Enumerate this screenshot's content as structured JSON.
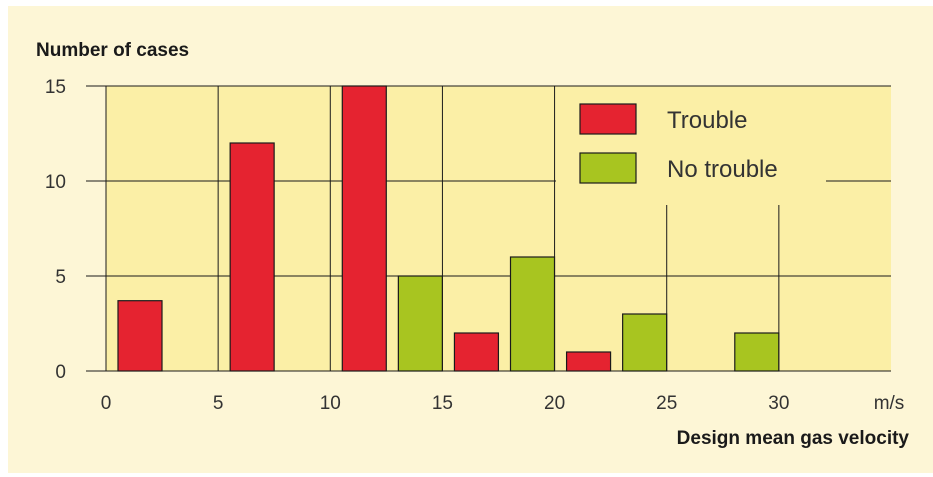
{
  "chart_data": {
    "type": "bar",
    "ylabel": "Number of cases",
    "xlabel": "Design mean gas velocity",
    "x_unit": "m/s",
    "xlim": [
      0,
      35
    ],
    "ylim": [
      0,
      15
    ],
    "x_ticks": [
      "0",
      "5",
      "10",
      "15",
      "20",
      "25",
      "30"
    ],
    "y_ticks": [
      "0",
      "5",
      "10",
      "15"
    ],
    "categories": [
      "0-5",
      "5-10",
      "10-15",
      "15-20",
      "20-25",
      "25-30"
    ],
    "series": [
      {
        "name": "Trouble",
        "color": "#e52330",
        "values": [
          3.7,
          12,
          15,
          2,
          1,
          0
        ]
      },
      {
        "name": "No trouble",
        "color": "#a8c520",
        "values": [
          0,
          0,
          5,
          6,
          3,
          2
        ]
      }
    ],
    "legend_position": "top-right",
    "grid": true,
    "colors": {
      "panel": "#fdf6d6",
      "plot": "#fbefa6",
      "grid": "#1a1a1a"
    }
  }
}
